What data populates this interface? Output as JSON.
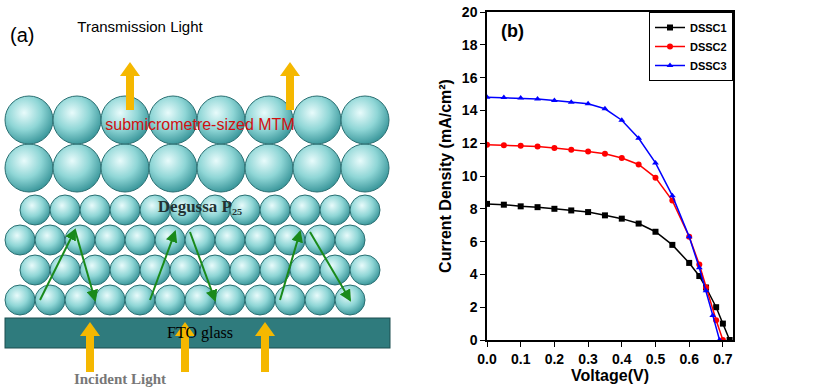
{
  "panel_a": {
    "label": "(a)",
    "top_text": "Transmission Light",
    "layer_top": "submicrometre-sized MTM",
    "layer_middle": "Degussa P₂₅",
    "substrate": "FTO glass",
    "bottom_text": "Incident Light"
  },
  "chart_data": {
    "type": "line",
    "panel_label": "(b)",
    "x_label": "Voltage(V)",
    "y_label": "Current Density (mA/cm²)",
    "xlim": [
      0,
      0.73
    ],
    "ylim": [
      0,
      20
    ],
    "xticks": [
      {
        "value": 0,
        "label": "0.0"
      },
      0.1,
      0.2,
      0.3,
      0.4,
      0.5,
      0.6,
      0.7
    ],
    "yticks": [
      0,
      2,
      4,
      6,
      8,
      10,
      12,
      14,
      16,
      18,
      20
    ],
    "legend": "upper right",
    "series": [
      {
        "name": "DSSC1",
        "color": "#000000",
        "marker": "square",
        "x": [
          0,
          0.05,
          0.1,
          0.15,
          0.2,
          0.25,
          0.3,
          0.35,
          0.4,
          0.45,
          0.5,
          0.55,
          0.6,
          0.63,
          0.65,
          0.68,
          0.7,
          0.72
        ],
        "values": [
          8.3,
          8.25,
          8.15,
          8.1,
          8.0,
          7.9,
          7.8,
          7.6,
          7.4,
          7.1,
          6.6,
          5.8,
          4.7,
          3.9,
          3.2,
          2.0,
          1.0,
          0
        ]
      },
      {
        "name": "DSSC2",
        "color": "#ff0000",
        "marker": "circle",
        "x": [
          0,
          0.05,
          0.1,
          0.15,
          0.2,
          0.25,
          0.3,
          0.35,
          0.4,
          0.45,
          0.5,
          0.55,
          0.6,
          0.63,
          0.65,
          0.68,
          0.7
        ],
        "values": [
          11.9,
          11.88,
          11.85,
          11.8,
          11.7,
          11.6,
          11.5,
          11.35,
          11.1,
          10.7,
          9.9,
          8.5,
          6.3,
          4.6,
          3.2,
          1.2,
          0
        ]
      },
      {
        "name": "DSSC3",
        "color": "#0000ff",
        "marker": "triangle-up",
        "x": [
          0,
          0.05,
          0.1,
          0.15,
          0.2,
          0.25,
          0.3,
          0.35,
          0.4,
          0.45,
          0.5,
          0.55,
          0.6,
          0.63,
          0.65,
          0.67,
          0.69
        ],
        "values": [
          14.8,
          14.78,
          14.75,
          14.7,
          14.6,
          14.5,
          14.4,
          14.1,
          13.4,
          12.3,
          10.8,
          8.8,
          6.3,
          4.4,
          3.0,
          1.5,
          0
        ]
      }
    ]
  }
}
